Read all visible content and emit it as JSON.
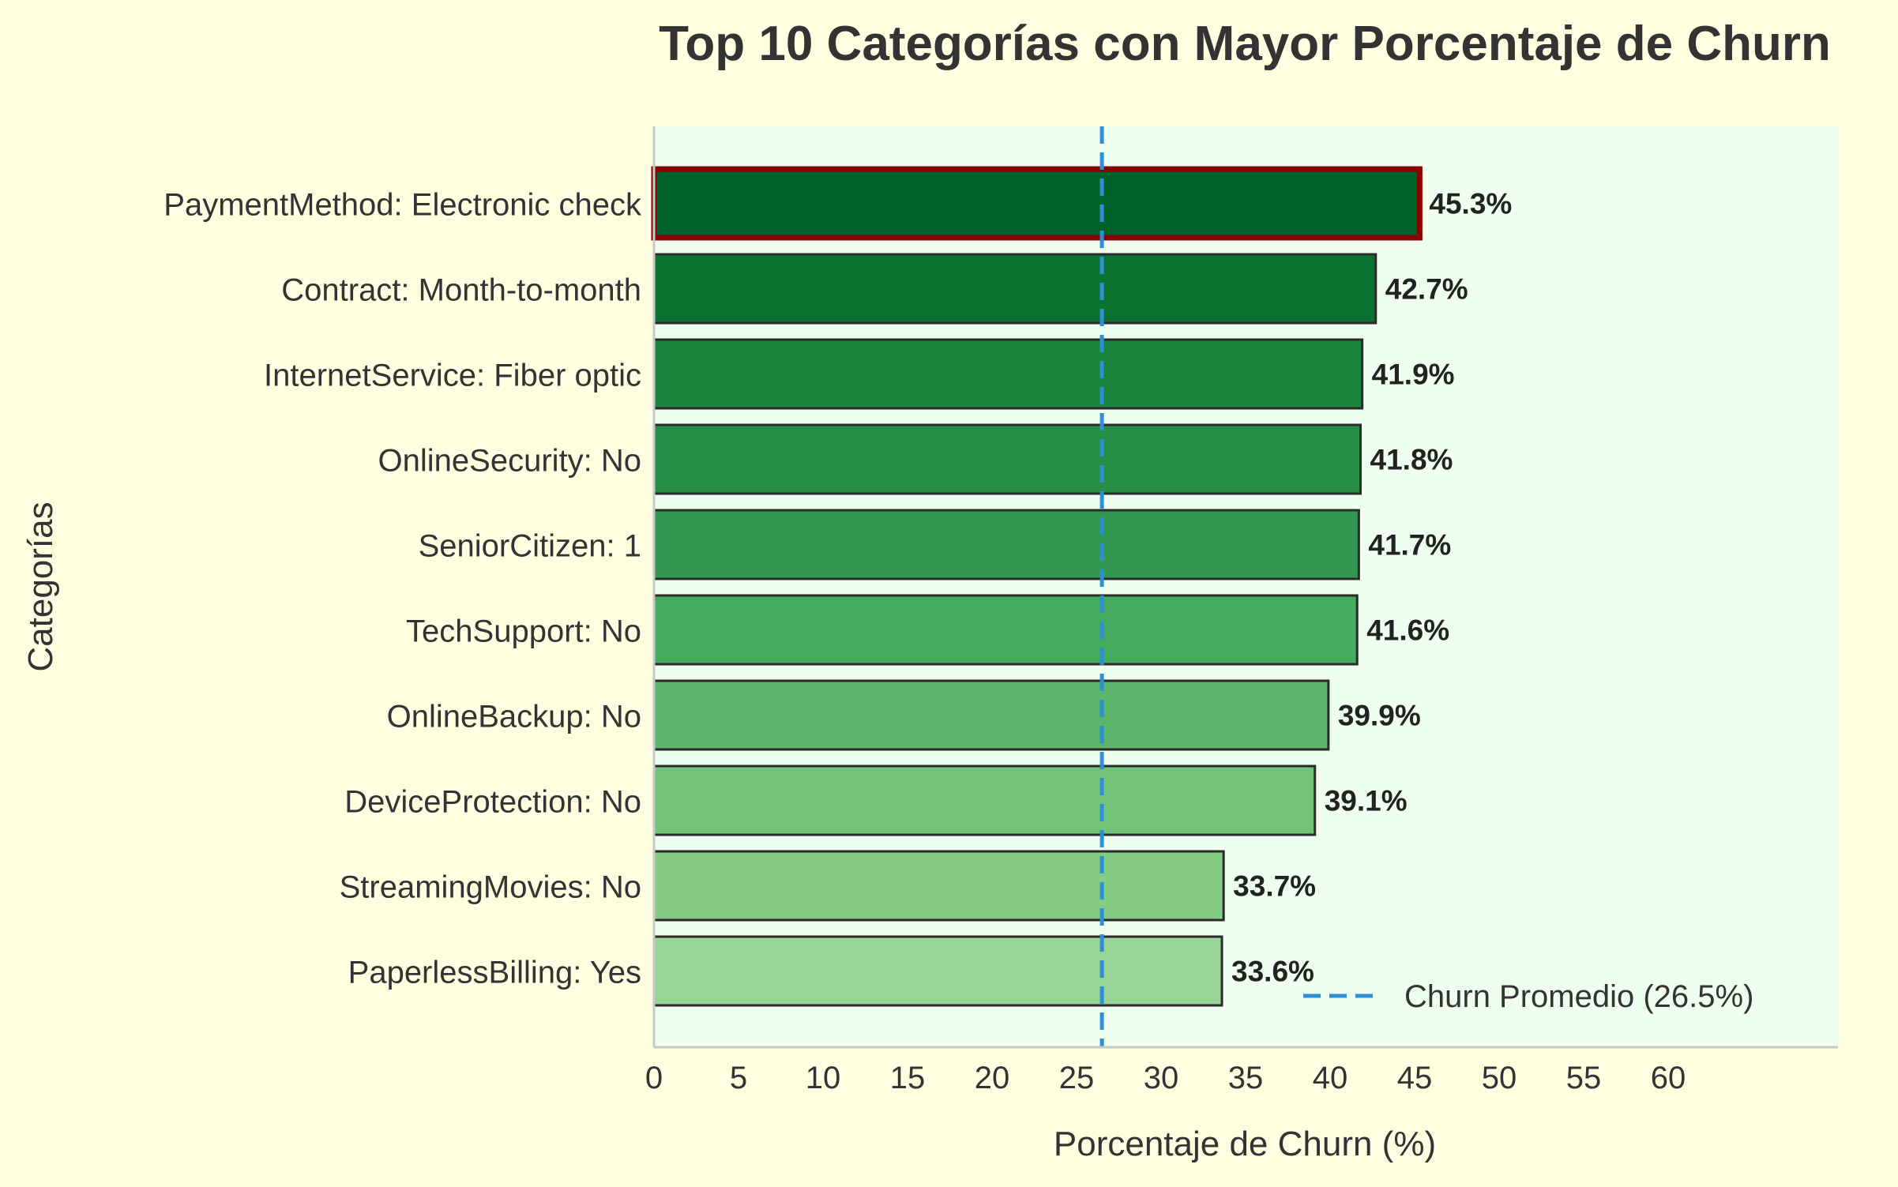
{
  "chart_data": {
    "type": "bar",
    "orientation": "horizontal",
    "title": "Top 10 Categorías con Mayor Porcentaje de Churn",
    "xlabel": "Porcentaje de Churn (%)",
    "ylabel": "Categorías",
    "categories": [
      "PaymentMethod: Electronic check",
      "Contract: Month-to-month",
      "InternetService: Fiber optic",
      "OnlineSecurity: No",
      "SeniorCitizen: 1",
      "TechSupport: No",
      "OnlineBackup: No",
      "DeviceProtection: No",
      "StreamingMovies: No",
      "PaperlessBilling: Yes"
    ],
    "values": [
      45.3,
      42.7,
      41.9,
      41.8,
      41.7,
      41.6,
      39.9,
      39.1,
      33.7,
      33.6
    ],
    "value_labels": [
      "45.3%",
      "42.7%",
      "41.9%",
      "41.8%",
      "41.7%",
      "41.6%",
      "39.9%",
      "39.1%",
      "33.7%",
      "33.6%"
    ],
    "bar_colors": [
      "#00602a",
      "#0b7331",
      "#1b843d",
      "#268e45",
      "#34974f",
      "#45ab5e",
      "#5ab66a",
      "#71c477",
      "#84cb84",
      "#98d495"
    ],
    "highlight": {
      "index": 0,
      "edge_color": "#8b0000"
    },
    "bar_edge_color": "#2b2b2b",
    "xticks": [
      0,
      5,
      10,
      15,
      20,
      25,
      30,
      35,
      40,
      45,
      50,
      55,
      60
    ],
    "xlim": [
      0,
      70
    ],
    "reference_line": {
      "value": 26.5,
      "label": "Churn Promedio (26.5%)",
      "color": "#2b8fdc",
      "style": "dashed"
    },
    "legend": {
      "placement": "lower-right",
      "entries": [
        "Churn Promedio (26.5%)"
      ]
    },
    "grid": false,
    "colors": {
      "figure_background": "#fffee0",
      "plot_background": "#efffef",
      "text": "#333333",
      "spine": "#c8c8c8"
    }
  }
}
